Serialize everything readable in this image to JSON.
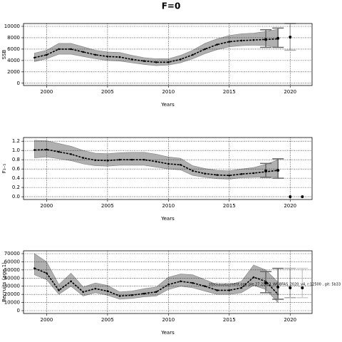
{
  "title": "F=0",
  "chart_data": [
    {
      "type": "line",
      "ylabel": "SSB",
      "xlabel": "Years",
      "x": [
        1999,
        2000,
        2001,
        2002,
        2003,
        2004,
        2005,
        2006,
        2007,
        2008,
        2009,
        2010,
        2011,
        2012,
        2013,
        2014,
        2015,
        2016,
        2017,
        2018,
        2019
      ],
      "values": [
        4500,
        5000,
        6000,
        6000,
        5500,
        5000,
        4700,
        4600,
        4200,
        3900,
        3700,
        3700,
        4200,
        5000,
        6000,
        6800,
        7300,
        7500,
        7600,
        7700,
        7800
      ],
      "lower": [
        3800,
        4300,
        5100,
        5100,
        4700,
        4300,
        4000,
        3900,
        3600,
        3300,
        3100,
        3200,
        3600,
        4300,
        5200,
        5900,
        6400,
        6600,
        6700,
        6600,
        6300
      ],
      "upper": [
        5300,
        5800,
        7000,
        7000,
        6400,
        5800,
        5500,
        5400,
        4900,
        4500,
        4300,
        4300,
        4900,
        5800,
        7000,
        7800,
        8400,
        8700,
        8800,
        9100,
        9500
      ],
      "projection": {
        "x": [
          2018,
          2019,
          2020
        ],
        "values": [
          7700,
          7900,
          8100
        ],
        "lower": [
          6300,
          6300,
          5800
        ],
        "upper": [
          9400,
          9700,
          10500
        ]
      },
      "xlim": [
        1998.1,
        2021.8
      ],
      "ylim": [
        -400,
        10500
      ],
      "xticks": [
        2000,
        2005,
        2010,
        2015,
        2020
      ],
      "yticks": [
        0,
        2000,
        4000,
        6000,
        8000,
        10000
      ],
      "grid": true,
      "color": "#000000",
      "band_color": "#b0b0b0"
    },
    {
      "type": "line",
      "ylabel": "F₃₋₅",
      "xlabel": "Years",
      "x": [
        1999,
        2000,
        2001,
        2002,
        2003,
        2004,
        2005,
        2006,
        2007,
        2008,
        2009,
        2010,
        2011,
        2012,
        2013,
        2014,
        2015,
        2016,
        2017,
        2018,
        2019
      ],
      "values": [
        1.01,
        1.02,
        0.97,
        0.92,
        0.84,
        0.79,
        0.78,
        0.8,
        0.8,
        0.8,
        0.76,
        0.71,
        0.69,
        0.56,
        0.5,
        0.47,
        0.46,
        0.49,
        0.51,
        0.54,
        0.57
      ],
      "lower": [
        0.84,
        0.86,
        0.82,
        0.78,
        0.71,
        0.67,
        0.66,
        0.68,
        0.68,
        0.68,
        0.64,
        0.6,
        0.58,
        0.46,
        0.42,
        0.39,
        0.38,
        0.41,
        0.42,
        0.43,
        0.42
      ],
      "upper": [
        1.22,
        1.21,
        1.15,
        1.09,
        1.0,
        0.94,
        0.93,
        0.95,
        0.96,
        0.96,
        0.92,
        0.86,
        0.83,
        0.67,
        0.61,
        0.57,
        0.56,
        0.6,
        0.63,
        0.7,
        0.8
      ],
      "projection": {
        "x": [
          2018,
          2019,
          2020,
          2021
        ],
        "values": [
          0.56,
          0.57,
          0,
          0
        ],
        "lower": [
          0.42,
          0.4,
          null,
          null
        ],
        "upper": [
          0.72,
          0.82,
          null,
          null
        ]
      },
      "xlim": [
        1998.1,
        2021.8
      ],
      "ylim": [
        -0.06,
        1.28
      ],
      "xticks": [
        2000,
        2005,
        2010,
        2015,
        2020
      ],
      "yticks": [
        {
          "value": 0,
          "label": "0.0"
        },
        0.2,
        0.4,
        0.6,
        0.8,
        {
          "value": 1,
          "label": "1.0"
        },
        1.2
      ],
      "grid": true,
      "color": "#000000",
      "band_color": "#b0b0b0"
    },
    {
      "type": "line",
      "ylabel": "Recruits (age 1)",
      "xlabel": "Years",
      "annotation": "stockassessment.org, ple.27.21-23_WGBFAS_2020_v4, r:12500 , git: 5b33",
      "x": [
        1999,
        2000,
        2001,
        2002,
        2003,
        2004,
        2005,
        2006,
        2007,
        2008,
        2009,
        2010,
        2011,
        2012,
        2013,
        2014,
        2015,
        2016,
        2017,
        2018,
        2019
      ],
      "values": [
        52000,
        46000,
        25000,
        36000,
        23000,
        27000,
        24000,
        18000,
        19000,
        21000,
        23000,
        32000,
        36000,
        34000,
        30000,
        25000,
        25000,
        28000,
        41000,
        36000,
        20000
      ],
      "lower": [
        44000,
        38000,
        20000,
        30000,
        18000,
        22000,
        19000,
        14000,
        15000,
        17000,
        18000,
        26000,
        30000,
        28000,
        24000,
        20000,
        20000,
        22000,
        31000,
        26000,
        10000
      ],
      "upper": [
        70000,
        60000,
        32000,
        46000,
        29000,
        34000,
        31000,
        23000,
        24000,
        27000,
        29000,
        41000,
        45000,
        44000,
        38000,
        32000,
        32000,
        36000,
        56000,
        50000,
        35000
      ],
      "projection": {
        "x": [
          2018,
          2019,
          2020,
          2021
        ],
        "values": [
          34000,
          29000,
          28000,
          28000
        ],
        "lower": [
          22000,
          14000,
          16000,
          16000
        ],
        "upper": [
          48000,
          52000,
          52000,
          52000
        ]
      },
      "xlim": [
        1998.1,
        2021.8
      ],
      "ylim": [
        -3500,
        73500
      ],
      "xticks": [
        2000,
        2005,
        2010,
        2015,
        2020
      ],
      "yticks": [
        0,
        10000,
        20000,
        30000,
        40000,
        50000,
        60000,
        70000
      ],
      "grid": true,
      "color": "#000000",
      "band_color": "#b0b0b0"
    }
  ]
}
